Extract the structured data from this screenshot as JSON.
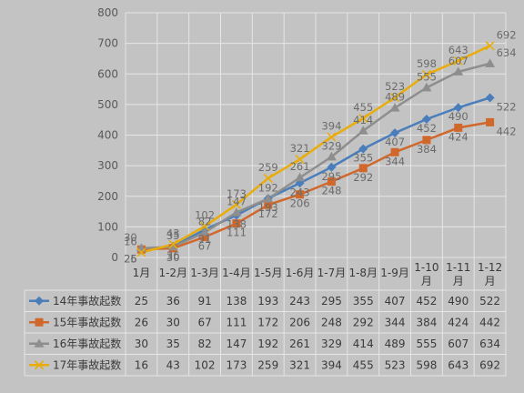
{
  "chart_data": {
    "type": "line",
    "categories": [
      "1月",
      "1-2月",
      "1-3月",
      "1-4月",
      "1-5月",
      "1-6月",
      "1-7月",
      "1-8月",
      "1-9月",
      "1-10月",
      "1-11月",
      "1-12月"
    ],
    "category_lines": [
      [
        "1月"
      ],
      [
        "1-2月"
      ],
      [
        "1-3月"
      ],
      [
        "1-4月"
      ],
      [
        "1-5月"
      ],
      [
        "1-6月"
      ],
      [
        "1-7月"
      ],
      [
        "1-8月"
      ],
      [
        "1-9月"
      ],
      [
        "1-10",
        "月"
      ],
      [
        "1-11",
        "月"
      ],
      [
        "1-12",
        "月"
      ]
    ],
    "yticks": [
      "0",
      "100",
      "200",
      "300",
      "400",
      "500",
      "600",
      "700",
      "800"
    ],
    "ylim": [
      0,
      800
    ],
    "grid": true,
    "legend": "data-table-left",
    "series": [
      {
        "name": "14年事故起数",
        "values": [
          25,
          36,
          91,
          138,
          193,
          243,
          295,
          355,
          407,
          452,
          490,
          522
        ],
        "color": "#4a7ebb",
        "marker": "diamond"
      },
      {
        "name": "15年事故起数",
        "values": [
          26,
          30,
          67,
          111,
          172,
          206,
          248,
          292,
          344,
          384,
          424,
          442
        ],
        "color": "#d0682c",
        "marker": "square"
      },
      {
        "name": "16年事故起数",
        "values": [
          30,
          35,
          82,
          147,
          192,
          261,
          329,
          414,
          489,
          555,
          607,
          634
        ],
        "color": "#8e8e8e",
        "marker": "triangle"
      },
      {
        "name": "17年事故起数",
        "values": [
          16,
          43,
          102,
          173,
          259,
          321,
          394,
          455,
          523,
          598,
          643,
          692
        ],
        "color": "#e8ad0c",
        "marker": "x"
      }
    ]
  }
}
